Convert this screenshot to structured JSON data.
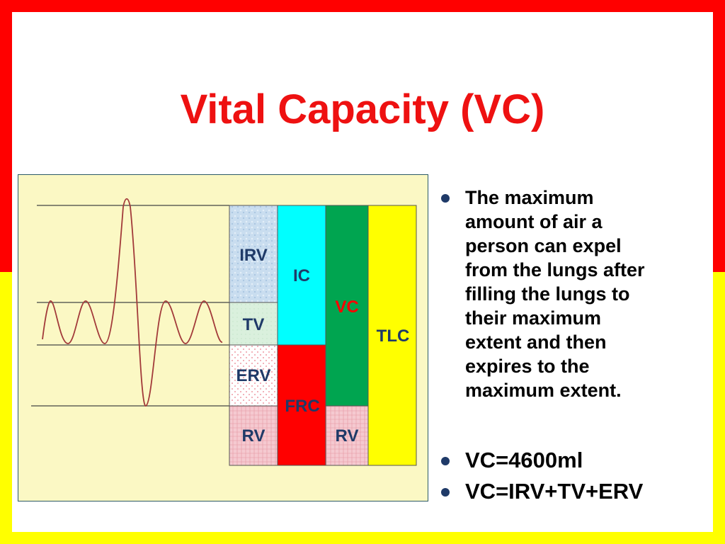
{
  "title": "Vital Capacity (VC)",
  "colors": {
    "title_red": "#ee1111",
    "border_red": "#ff0000",
    "border_yellow": "#ffff00",
    "panel_bg": "#fbf8c4",
    "label_blue": "#1f3a68",
    "ic_cyan": "#00ffff",
    "frc_red": "#ff0000",
    "vc_green": "#00a550",
    "tlc_yellow": "#ffff00"
  },
  "diagram": {
    "boxes": {
      "irv": "IRV",
      "tv": "TV",
      "erv": "ERV",
      "rv_left": "RV",
      "ic": "IC",
      "frc": "FRC",
      "vc": "VC",
      "rv_right": "RV",
      "tlc": "TLC"
    }
  },
  "bullets": [
    "The maximum amount of air a person can expel from the lungs after filling the lungs to their maximum extent and then expires to the maximum extent.",
    "VC=4600ml",
    "VC=IRV+TV+ERV"
  ],
  "bullet1_lines": [
    "The maximum",
    "amount of air a",
    "person can expel",
    "from the lungs after",
    "filling the lungs to",
    "their maximum",
    "extent and then",
    "expires to the",
    "maximum extent."
  ]
}
